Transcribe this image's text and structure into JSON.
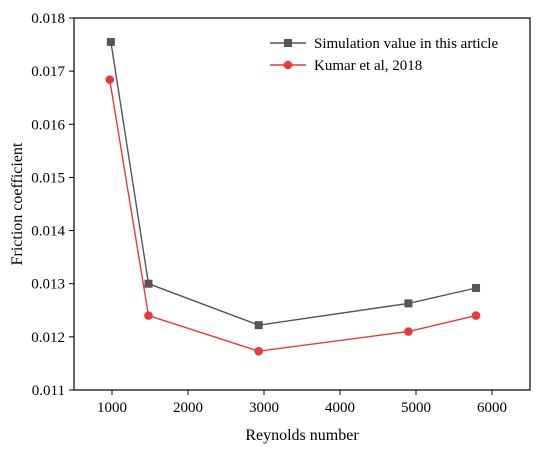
{
  "chart_data": {
    "type": "line",
    "title": "",
    "xlabel": "Reynolds number",
    "ylabel": "Friction coefficient",
    "xlim": [
      500,
      6500
    ],
    "ylim": [
      0.011,
      0.018
    ],
    "xticks": [
      1000,
      2000,
      3000,
      4000,
      5000,
      6000
    ],
    "yticks": [
      0.011,
      0.012,
      0.013,
      0.014,
      0.015,
      0.016,
      0.017,
      0.018
    ],
    "grid": false,
    "legend_position": "top-right",
    "series": [
      {
        "name": "Simulation value in this article",
        "color": "#555555",
        "marker": "square",
        "x": [
          985,
          1480,
          2930,
          4900,
          5790
        ],
        "y": [
          0.01755,
          0.013,
          0.01222,
          0.01263,
          0.01292
        ]
      },
      {
        "name": "Kumar et al, 2018",
        "color": "#e83a3a",
        "marker": "circle",
        "x": [
          970,
          1480,
          2930,
          4900,
          5790
        ],
        "y": [
          0.01684,
          0.0124,
          0.01173,
          0.0121,
          0.0124
        ]
      }
    ]
  }
}
